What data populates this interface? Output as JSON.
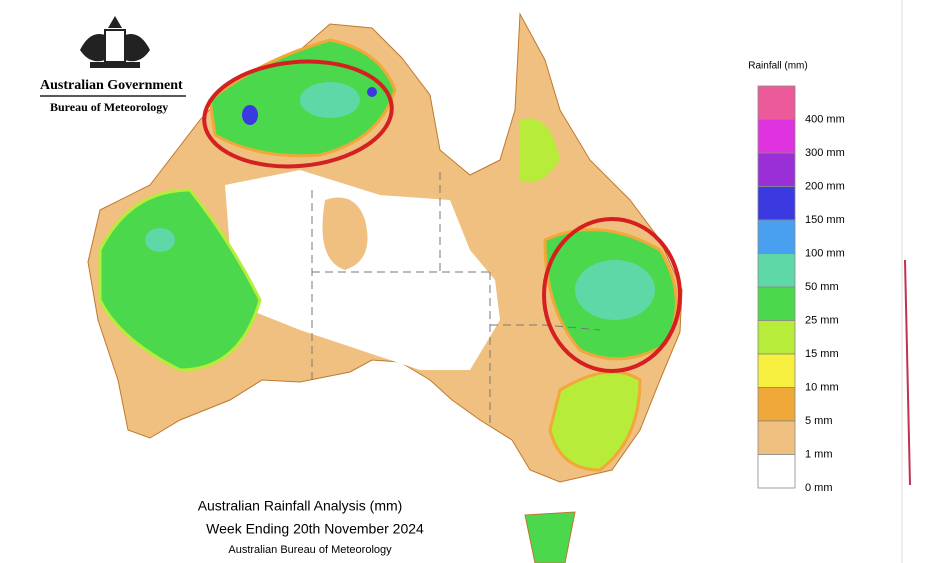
{
  "header": {
    "line1": "Australian Government",
    "line2": "Bureau of Meteorology"
  },
  "map": {
    "title": "Australian Rainfall Analysis (mm)",
    "subtitle": "Week Ending 20th November 2024",
    "source": "Australian Bureau of Meteorology"
  },
  "legend": {
    "title": "Rainfall (mm)",
    "labels": [
      "400 mm",
      "300 mm",
      "200 mm",
      "150 mm",
      "100 mm",
      "50 mm",
      "25 mm",
      "15 mm",
      "10 mm",
      "5 mm",
      "1 mm",
      "0 mm"
    ],
    "colors": [
      "#ec5a9a",
      "#e033e0",
      "#9a2fd8",
      "#3a3ae0",
      "#4aa0f0",
      "#5fd8a8",
      "#4cd84c",
      "#b8ec3a",
      "#f8f040",
      "#f0a838",
      "#f0c080",
      "#ffffff"
    ]
  }
}
